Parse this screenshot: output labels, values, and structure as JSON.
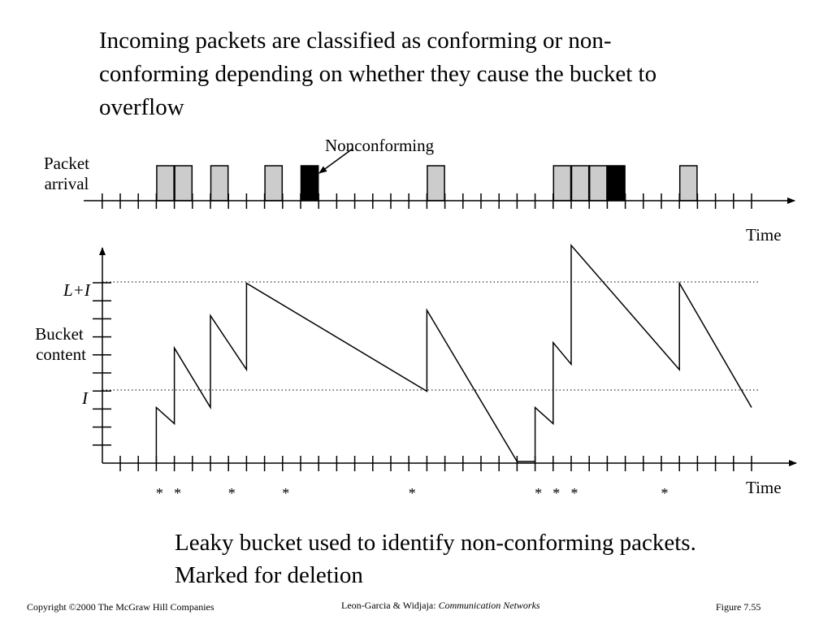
{
  "heading": {
    "lines": [
      "Incoming packets are classified as conforming or non-",
      "conforming depending on whether they cause the bucket to",
      "overflow"
    ]
  },
  "diagram": {
    "nonconforming_label": "Nonconforming",
    "packet_arrival_label": [
      "Packet",
      "arrival"
    ],
    "time_label_top": "Time",
    "time_label_bottom": "Time",
    "bucket_content_label": [
      "Bucket",
      "content"
    ],
    "level_label_top": "L+I",
    "level_label_mid": "I",
    "packets": [
      {
        "slot": 2,
        "conforming": true
      },
      {
        "slot": 3,
        "conforming": true
      },
      {
        "slot": 5,
        "conforming": true
      },
      {
        "slot": 8,
        "conforming": true
      },
      {
        "slot": 10,
        "conforming": false
      },
      {
        "slot": 17,
        "conforming": true
      },
      {
        "slot": 24,
        "conforming": true
      },
      {
        "slot": 25,
        "conforming": true
      },
      {
        "slot": 26,
        "conforming": true
      },
      {
        "slot": 27,
        "conforming": false
      },
      {
        "slot": 31,
        "conforming": true
      }
    ],
    "bucket_content": [
      [
        2,
        0
      ],
      [
        2,
        1
      ],
      [
        3,
        0.7
      ],
      [
        3,
        2.1
      ],
      [
        5,
        1
      ],
      [
        5,
        2.7
      ],
      [
        7,
        1.7
      ],
      [
        7,
        3.3
      ],
      [
        17,
        1.3
      ],
      [
        17,
        2.8
      ],
      [
        22,
        0
      ],
      [
        23,
        0
      ],
      [
        23,
        1
      ],
      [
        24,
        0.7
      ],
      [
        24,
        2.2
      ],
      [
        25,
        1.8
      ],
      [
        25,
        4
      ],
      [
        31,
        1.7
      ],
      [
        31,
        3.3
      ],
      [
        35,
        1
      ]
    ],
    "marks": [
      {
        "slot": 2,
        "text": "*"
      },
      {
        "slot": 3,
        "text": "*"
      },
      {
        "slot": 6,
        "text": "*"
      },
      {
        "slot": 9,
        "text": "*"
      },
      {
        "slot": 16,
        "text": "*"
      },
      {
        "slot": 23,
        "text": "*"
      },
      {
        "slot": 24,
        "text": "*"
      },
      {
        "slot": 25,
        "text": "*"
      },
      {
        "slot": 30,
        "text": "*"
      }
    ],
    "colors": {
      "conforming": "#cccccc",
      "nonconforming": "#000000",
      "line": "#000000"
    }
  },
  "caption": {
    "lines": [
      "Leaky bucket used to identify non-conforming packets.",
      "Marked for deletion"
    ]
  },
  "footer": {
    "copyright": "Copyright ©2000 The McGraw Hill Companies",
    "authors": "Leon-Garcia & Widjaja:",
    "book": "Communication Networks",
    "figure": "Figure 7.55"
  }
}
